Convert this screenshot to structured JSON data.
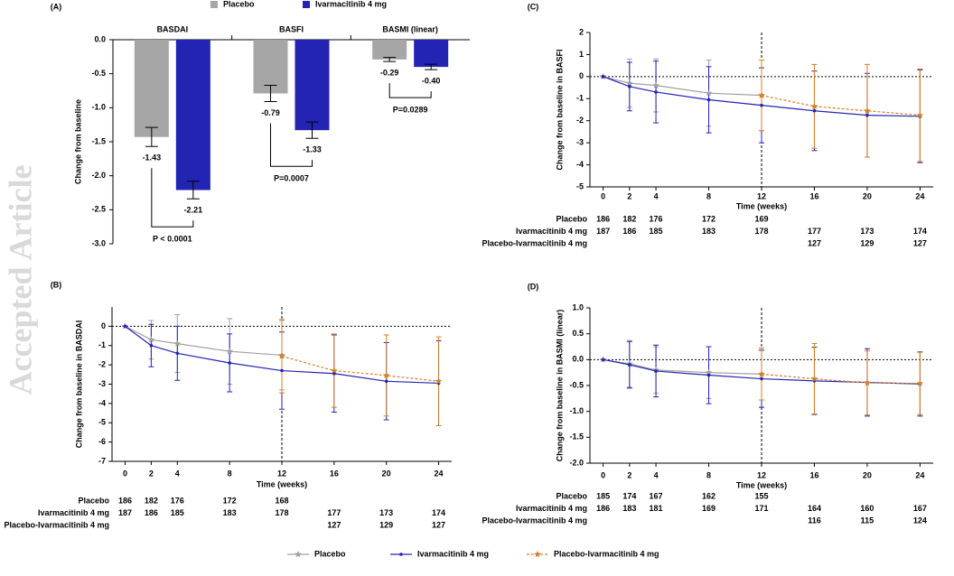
{
  "watermark": "Accepted Article",
  "chart_data": [
    {
      "type": "bar",
      "panel": "(A)",
      "ylabel": "Change from baseline",
      "categories": [
        "BASDAI",
        "BASFI",
        "BASMI (linear)"
      ],
      "series": [
        {
          "name": "Placebo",
          "color": "#a6a6a6",
          "values": [
            -1.43,
            -0.79,
            -0.29
          ],
          "value_labels": [
            "-1.43",
            "-0.79",
            "-0.29"
          ],
          "errors": [
            0.14,
            0.12,
            0.03
          ]
        },
        {
          "name": "Ivarmacitinib 4 mg",
          "color": "#2323b4",
          "values": [
            -2.21,
            -1.33,
            -0.4
          ],
          "value_labels": [
            "-2.21",
            "-1.33",
            "-0.40"
          ],
          "errors": [
            0.13,
            0.12,
            0.04
          ]
        }
      ],
      "annotations": [
        "P < 0.0001",
        "P=0.0007",
        "P=0.0289"
      ],
      "ylim": [
        -3,
        0
      ],
      "yticks": [
        {
          "value": 0,
          "label": "0.0"
        },
        -0.5,
        {
          "value": -1,
          "label": "-1.0"
        },
        -1.5,
        {
          "value": -2,
          "label": "-2.0"
        },
        -2.5,
        {
          "value": -3,
          "label": "-3.0"
        }
      ],
      "legend": "top"
    },
    {
      "type": "line",
      "panel": "(B)",
      "ylabel": "Change from baseline in BASDAI",
      "xlabel": "Time (weeks)",
      "x": [
        0,
        2,
        4,
        8,
        12,
        16,
        20,
        24
      ],
      "xlim": [
        -1,
        25
      ],
      "xticks": [
        0,
        2,
        4,
        8,
        12,
        16,
        20,
        24
      ],
      "ylim": [
        -7,
        1
      ],
      "yticks": [
        0,
        -1,
        -2,
        -3,
        -4,
        -5,
        -6,
        -7
      ],
      "reference_lines": {
        "x": 12,
        "y": 0
      },
      "series": [
        {
          "name": "Placebo",
          "color": "#a0a0a0",
          "marker": "star",
          "line_style": "solid",
          "values": [
            0,
            -0.7,
            -0.9,
            -1.3,
            -1.5,
            null,
            null,
            null
          ],
          "errors": [
            0,
            1.0,
            1.5,
            1.7,
            1.8,
            null,
            null,
            null
          ]
        },
        {
          "name": "Ivarmacitinib 4 mg",
          "color": "#2323b4",
          "marker": "circle",
          "line_style": "solid",
          "values": [
            0,
            -1.0,
            -1.4,
            -1.9,
            -2.3,
            -2.45,
            -2.85,
            -2.95
          ],
          "errors": [
            0,
            1.1,
            1.4,
            1.5,
            2.0,
            2.0,
            2.0,
            2.2
          ]
        },
        {
          "name": "Placebo-Ivarmacitinib 4 mg",
          "color": "#d2822a",
          "marker": "star",
          "line_style": "dashed",
          "values": [
            null,
            null,
            null,
            null,
            -1.55,
            -2.3,
            -2.55,
            -2.85
          ],
          "errors": [
            null,
            null,
            null,
            null,
            1.9,
            1.9,
            2.1,
            2.3
          ]
        }
      ],
      "at_risk": [
        {
          "label": "Placebo",
          "counts": [
            186,
            182,
            176,
            172,
            168,
            null,
            null,
            null
          ]
        },
        {
          "label": "Ivarmacitinib 4 mg",
          "counts": [
            187,
            186,
            185,
            183,
            178,
            177,
            173,
            174
          ]
        },
        {
          "label": "Placebo-Ivarmacitinib 4 mg",
          "counts": [
            null,
            null,
            null,
            null,
            null,
            127,
            129,
            127
          ]
        }
      ],
      "legend": "bottom"
    },
    {
      "type": "line",
      "panel": "(C)",
      "ylabel": "Change from baseline in BASFI",
      "xlabel": "Time (weeks)",
      "x": [
        0,
        2,
        4,
        8,
        12,
        16,
        20,
        24
      ],
      "xlim": [
        -1,
        25
      ],
      "xticks": [
        0,
        2,
        4,
        8,
        12,
        16,
        20,
        24
      ],
      "ylim": [
        -5,
        2
      ],
      "yticks": [
        2,
        1,
        0,
        -1,
        -2,
        -3,
        -4,
        -5
      ],
      "reference_lines": {
        "x": 12,
        "y": 0
      },
      "series": [
        {
          "color": "#a0a0a0",
          "marker": "star",
          "line_style": "solid",
          "values": [
            0,
            -0.3,
            -0.4,
            -0.75,
            -0.85,
            null,
            null,
            null
          ],
          "errors": [
            0,
            1.1,
            1.2,
            1.5,
            1.6,
            null,
            null,
            null
          ]
        },
        {
          "color": "#2323b4",
          "marker": "circle",
          "line_style": "solid",
          "values": [
            0,
            -0.45,
            -0.7,
            -1.05,
            -1.3,
            -1.55,
            -1.75,
            -1.8
          ],
          "errors": [
            0,
            1.1,
            1.4,
            1.5,
            1.7,
            1.8,
            1.9,
            2.1
          ]
        },
        {
          "color": "#d2822a",
          "marker": "star",
          "line_style": "dashed",
          "values": [
            null,
            null,
            null,
            null,
            -0.85,
            -1.35,
            -1.55,
            -1.75
          ],
          "errors": [
            null,
            null,
            null,
            null,
            1.6,
            1.9,
            2.1,
            2.1
          ]
        }
      ],
      "at_risk": [
        {
          "label": "Placebo",
          "counts": [
            186,
            182,
            176,
            172,
            169,
            null,
            null,
            null
          ]
        },
        {
          "label": "Ivarmacitinib 4 mg",
          "counts": [
            187,
            186,
            185,
            183,
            178,
            177,
            173,
            174
          ]
        },
        {
          "label": "Placebo-Ivarmacitinib 4 mg",
          "counts": [
            null,
            null,
            null,
            null,
            null,
            127,
            129,
            127
          ]
        }
      ]
    },
    {
      "type": "line",
      "panel": "(D)",
      "ylabel": "Change from baseline in BASMI (linear)",
      "xlabel": "Time (weeks)",
      "x": [
        0,
        2,
        4,
        8,
        12,
        16,
        20,
        24
      ],
      "xlim": [
        -1,
        25
      ],
      "xticks": [
        0,
        2,
        4,
        8,
        12,
        16,
        20,
        24
      ],
      "ylim": [
        -2,
        1
      ],
      "yticks": [
        {
          "value": 1,
          "label": "1.0"
        },
        0.5,
        {
          "value": 0,
          "label": "0.0"
        },
        -0.5,
        {
          "value": -1,
          "label": "-1.0"
        },
        -1.5,
        {
          "value": -2,
          "label": "-2.0"
        }
      ],
      "reference_lines": {
        "x": 12,
        "y": 0
      },
      "series": [
        {
          "color": "#a0a0a0",
          "marker": "star",
          "line_style": "solid",
          "values": [
            0,
            -0.08,
            -0.2,
            -0.25,
            -0.28,
            null,
            null,
            null
          ],
          "errors": [
            0,
            0.45,
            0.45,
            0.5,
            0.5,
            null,
            null,
            null
          ]
        },
        {
          "color": "#2323b4",
          "marker": "circle",
          "line_style": "solid",
          "values": [
            0,
            -0.1,
            -0.22,
            -0.3,
            -0.37,
            -0.41,
            -0.44,
            -0.47
          ],
          "errors": [
            0,
            0.45,
            0.5,
            0.55,
            0.55,
            0.65,
            0.65,
            0.62
          ]
        },
        {
          "color": "#d2822a",
          "marker": "star",
          "line_style": "dashed",
          "values": [
            null,
            null,
            null,
            null,
            -0.28,
            -0.37,
            -0.45,
            -0.46
          ],
          "errors": [
            null,
            null,
            null,
            null,
            0.5,
            0.68,
            0.62,
            0.6
          ]
        }
      ],
      "at_risk": [
        {
          "label": "Placebo",
          "counts": [
            185,
            174,
            167,
            162,
            155,
            null,
            null,
            null
          ]
        },
        {
          "label": "Ivarmacitinib 4 mg",
          "counts": [
            186,
            183,
            181,
            169,
            171,
            164,
            160,
            167
          ]
        },
        {
          "label": "Placebo-Ivarmacitinib 4 mg",
          "counts": [
            null,
            null,
            null,
            null,
            null,
            116,
            115,
            124
          ]
        }
      ]
    }
  ]
}
